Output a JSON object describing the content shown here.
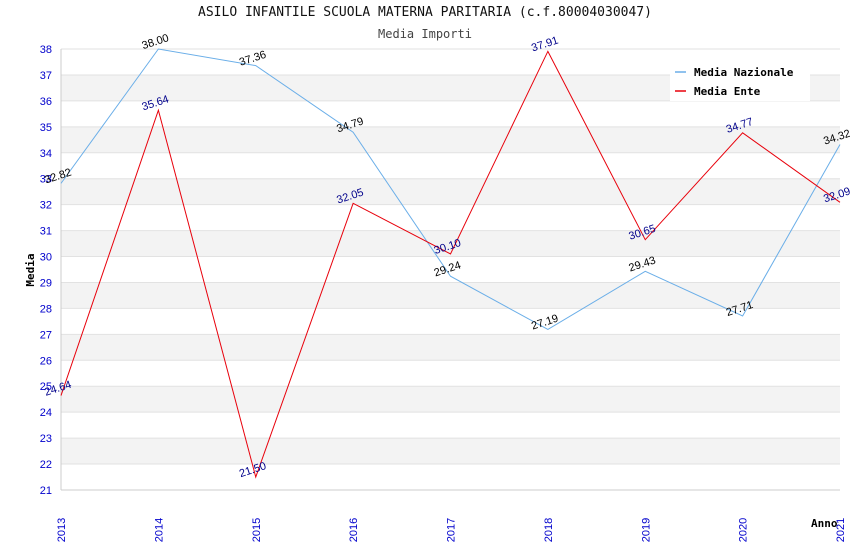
{
  "chart_data": {
    "type": "line",
    "title": "ASILO INFANTILE SCUOLA MATERNA PARITARIA (c.f.80004030047)",
    "subtitle": "Media Importi",
    "xlabel": "Anno",
    "ylabel": "Media",
    "x": [
      "2013",
      "2014",
      "2015",
      "2016",
      "2017",
      "2018",
      "2019",
      "2020",
      "2021"
    ],
    "ylim": [
      21,
      38
    ],
    "yticks": [
      21,
      22,
      23,
      24,
      25,
      26,
      27,
      28,
      29,
      30,
      31,
      32,
      33,
      34,
      35,
      36,
      37,
      38
    ],
    "grid": true,
    "legend_position": "top-right",
    "series": [
      {
        "name": "Media Nazionale",
        "color": "#6aaee8",
        "values": [
          32.82,
          38.0,
          37.36,
          34.79,
          29.24,
          27.19,
          29.43,
          27.71,
          34.32
        ],
        "labels": [
          "32.82",
          "38.00",
          "37.36",
          "34.79",
          "29.24",
          "27.19",
          "29.43",
          "27.71",
          "34.32"
        ]
      },
      {
        "name": "Media Ente",
        "color": "#e8000b",
        "values": [
          24.64,
          35.64,
          21.5,
          32.05,
          30.1,
          37.91,
          30.65,
          34.77,
          32.09
        ],
        "labels": [
          "24.64",
          "35.64",
          "21.50",
          "32.05",
          "30.10",
          "37.91",
          "30.65",
          "34.77",
          "32.09"
        ]
      }
    ]
  }
}
